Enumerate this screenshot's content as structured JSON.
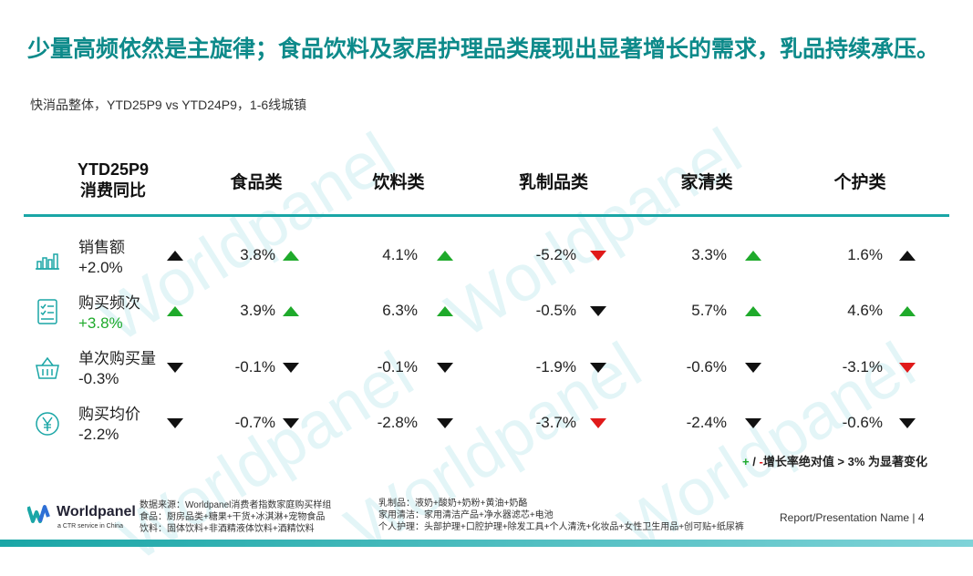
{
  "title": "少量高频依然是主旋律；食品饮料及家居护理品类展现出显著增长的需求，乳品持续承压。",
  "subtitle": "快消品整体，YTD25P9 vs YTD24P9，1-6线城镇",
  "header": {
    "label_line1": "YTD25P9",
    "label_line2": "消费同比",
    "categories": [
      "食品类",
      "饮料类",
      "乳制品类",
      "家清类",
      "个护类"
    ]
  },
  "rows": [
    {
      "name": "销售额",
      "total": "+2.0%",
      "total_dir": "up-black",
      "cells": [
        {
          "value": "3.8%",
          "dir": "up-green"
        },
        {
          "value": "4.1%",
          "dir": "up-green"
        },
        {
          "value": "-5.2%",
          "dir": "down-red"
        },
        {
          "value": "3.3%",
          "dir": "up-green"
        },
        {
          "value": "1.6%",
          "dir": "up-black"
        }
      ]
    },
    {
      "name": "购买频次",
      "total": "+3.8%",
      "total_dir": "up-green",
      "cells": [
        {
          "value": "3.9%",
          "dir": "up-green"
        },
        {
          "value": "6.3%",
          "dir": "up-green"
        },
        {
          "value": "-0.5%",
          "dir": "down-black"
        },
        {
          "value": "5.7%",
          "dir": "up-green"
        },
        {
          "value": "4.6%",
          "dir": "up-green"
        }
      ]
    },
    {
      "name": "单次购买量",
      "total": "-0.3%",
      "total_dir": "down-black",
      "cells": [
        {
          "value": "-0.1%",
          "dir": "down-black"
        },
        {
          "value": "-0.1%",
          "dir": "down-black"
        },
        {
          "value": "-1.9%",
          "dir": "down-black"
        },
        {
          "value": "-0.6%",
          "dir": "down-black"
        },
        {
          "value": "-3.1%",
          "dir": "down-red"
        }
      ]
    },
    {
      "name": "购买均价",
      "total": "-2.2%",
      "total_dir": "down-black",
      "cells": [
        {
          "value": "-0.7%",
          "dir": "down-black"
        },
        {
          "value": "-2.8%",
          "dir": "down-black"
        },
        {
          "value": "-3.7%",
          "dir": "down-red"
        },
        {
          "value": "-2.4%",
          "dir": "down-black"
        },
        {
          "value": "-0.6%",
          "dir": "down-black"
        }
      ]
    }
  ],
  "legend": {
    "plus": "+",
    "slash": "/",
    "minus": "-",
    "text": "增长率绝对值 > 3% 为显著变化"
  },
  "footer": {
    "logo_name": "Worldpanel",
    "logo_sub": "a CTR service in China",
    "col1": [
      "数据来源：Worldpanel消费者指数家庭购买样组",
      "食品：厨房品类+糖果+干货+冰淇淋+宠物食品",
      "饮料：固体饮料+非酒精液体饮料+酒精饮料"
    ],
    "col2": [
      "乳制品：液奶+酸奶+奶粉+黄油+奶酪",
      "家用清洁：家用清洁产品+净水器滤芯+电池",
      "个人护理：头部护理+口腔护理+除发工具+个人清洗+化妆品+女性卫生用品+创可贴+纸尿裤"
    ],
    "page_info": "Report/Presentation Name | 4"
  },
  "watermark": "Worldpanel",
  "colors": {
    "accent": "#0d8a8a",
    "rule": "#1aa6a6",
    "up": "#1faa2b",
    "down_significant": "#e01a1a",
    "neutral": "#111111"
  }
}
